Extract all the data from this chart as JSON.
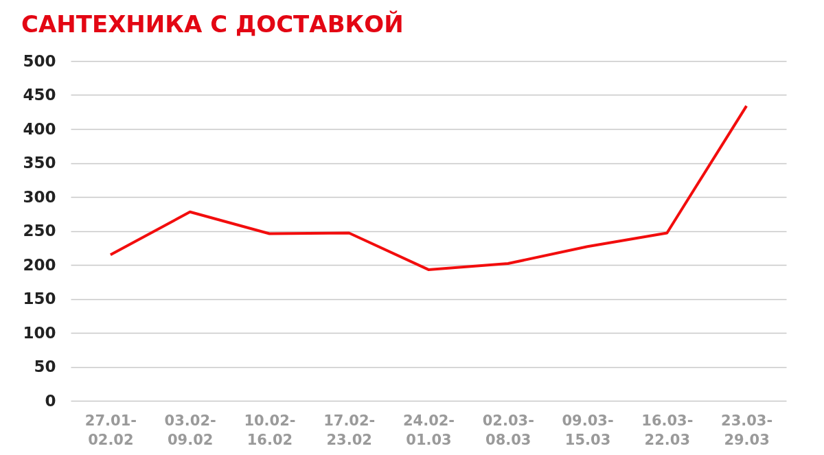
{
  "chart_data": {
    "type": "line",
    "title": "САНТЕХНИКА С ДОСТАВКОЙ",
    "categories": [
      "27.01-02.02",
      "03.02-09.02",
      "10.02-16.02",
      "17.02-23.02",
      "24.02-01.03",
      "02.03-08.03",
      "09.03-15.03",
      "16.03-22.03",
      "23.03-29.03"
    ],
    "series": [
      {
        "color": "#f20d0d",
        "values": [
          215,
          278,
          246,
          247,
          193,
          202,
          227,
          247,
          434
        ]
      }
    ],
    "ylim": [
      0,
      500
    ],
    "yticks": [
      0,
      50,
      100,
      150,
      200,
      250,
      300,
      350,
      400,
      450,
      500
    ],
    "grid": "y",
    "legend": false,
    "marker": "none",
    "line_style": "solid"
  }
}
